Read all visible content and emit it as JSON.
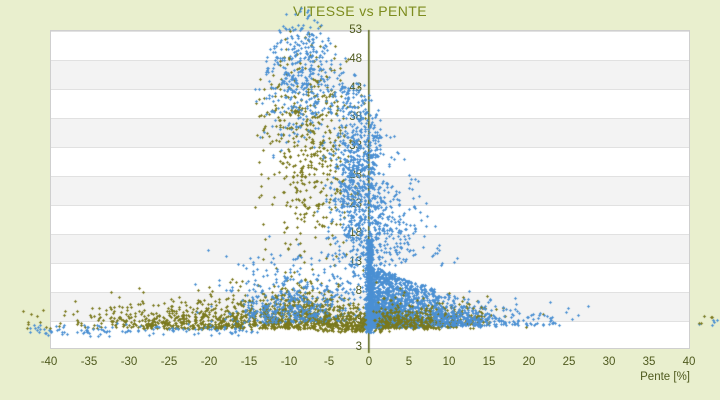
{
  "chart_data": {
    "type": "scatter",
    "title": "VITESSE vs PENTE",
    "xlabel": "Pente [%]",
    "ylabel": "",
    "xlim": [
      -40,
      40
    ],
    "ylim": [
      -2,
      53
    ],
    "xticks": [
      "-40",
      "-35",
      "-30",
      "-25",
      "-20",
      "-15",
      "-10",
      "-5",
      "0",
      "5",
      "10",
      "15",
      "20",
      "25",
      "30",
      "35",
      "40"
    ],
    "xtick_values": [
      -40,
      -35,
      -30,
      -25,
      -20,
      -15,
      -10,
      -5,
      0,
      5,
      10,
      15,
      20,
      25,
      30,
      35,
      40
    ],
    "ytick_labels_top_to_bottom": [
      "53",
      "48",
      "43",
      "38",
      "33",
      "28",
      "23",
      "18",
      "13",
      "8",
      "3"
    ],
    "ytick_values_top_to_bottom": [
      53,
      48,
      43,
      38,
      33,
      28,
      23,
      18,
      13,
      8,
      3
    ],
    "y_axis_min_label": "3",
    "grid": "horizontal-bands-alternating",
    "legend": "none",
    "y_axis_position": "at-x-zero",
    "colors": {
      "background": "#e9efce",
      "title_text": "#7d8c1e",
      "tick_text": "#4f5a1e",
      "axis_line": "#5c671d",
      "band_fill": "#f3f3f3",
      "gridline": "#e1e1e1",
      "plot_border": "#cfcfcf"
    },
    "series": [
      {
        "name": "serie-olive",
        "color": "#7a781c",
        "marker": "diamond-plus-3px"
      },
      {
        "name": "serie-bleue",
        "color": "#4a8fd3",
        "marker": "plus-3px"
      }
    ],
    "generator": {
      "seed": 20240042,
      "alpha": 0.92,
      "envelope": {
        "s0": -9,
        "vtop": 58,
        "al": 1.55,
        "pl": 1.35,
        "ar": 0.9,
        "pr": 1.3,
        "vmincap": 2
      },
      "clusters": [
        {
          "series": 0,
          "n": 620,
          "s": {
            "t": "n",
            "mu": -21,
            "sd": 7.5,
            "min": -43,
            "max": -8
          },
          "v": {
            "t": "h",
            "base": 1.5,
            "sd": 2.3,
            "min": 0.6,
            "max": 11
          }
        },
        {
          "series": 1,
          "n": 120,
          "s": {
            "t": "u",
            "a": -43,
            "b": -14
          },
          "v": {
            "t": "n",
            "mu": 1.3,
            "sd": 0.55,
            "min": 0.2,
            "max": 3
          }
        },
        {
          "series": 0,
          "n": 600,
          "env": true,
          "s": {
            "t": "n",
            "mu": -9,
            "sd": 4,
            "min": -20,
            "max": -0.5
          },
          "v": {
            "t": "h",
            "base": 1.5,
            "sd": 3.5,
            "min": 0.6,
            "max": 20
          }
        },
        {
          "series": 1,
          "n": 480,
          "env": true,
          "s": {
            "t": "n",
            "mu": -9.5,
            "sd": 4.5,
            "min": -22,
            "max": -0.5
          },
          "v": {
            "t": "h",
            "base": 2.5,
            "sd": 5,
            "min": 0.8,
            "max": 30
          }
        },
        {
          "series": 0,
          "n": 500,
          "env": true,
          "s": {
            "t": "n",
            "mu": -7.5,
            "sd": 3,
            "min": -14.5,
            "max": -0.5
          },
          "v": {
            "t": "n",
            "mu": 33,
            "sd": 10,
            "min": 13,
            "max": 57
          }
        },
        {
          "series": 1,
          "n": 420,
          "env": true,
          "s": {
            "t": "n",
            "mu": -8.5,
            "sd": 2.6,
            "min": -15,
            "max": -2
          },
          "v": {
            "t": "n",
            "mu": 46,
            "sd": 7,
            "min": 30,
            "max": 58
          }
        },
        {
          "series": 1,
          "n": 850,
          "env": true,
          "s": {
            "t": "n",
            "mu": -1.2,
            "sd": 2.0,
            "min": -6,
            "max": 1.5
          },
          "v": {
            "t": "n",
            "mu": 27,
            "sd": 9,
            "min": 5,
            "max": 52
          }
        },
        {
          "series": 0,
          "n": 280,
          "s": {
            "t": "n",
            "mu": -1.5,
            "sd": 2.5,
            "min": -7,
            "max": 2.5
          },
          "v": {
            "t": "h",
            "base": 1.0,
            "sd": 1.8,
            "min": 0.4,
            "max": 8
          }
        },
        {
          "series": 1,
          "n": 520,
          "s": {
            "t": "n",
            "mu": 0,
            "sd": 0.22,
            "min": -0.5,
            "max": 0.55
          },
          "v": {
            "t": "u",
            "a": 0.8,
            "b": 17
          }
        },
        {
          "series": 1,
          "n": 1500,
          "s": {
            "t": "h",
            "base": 0.2,
            "sd": 4.6,
            "min": 0,
            "max": 17
          },
          "v": {
            "t": "w",
            "vmin": 1.8,
            "vmax0": 12.5,
            "k": 0.5,
            "vfloor": 5.5,
            "pow": 1.45
          }
        },
        {
          "series": 0,
          "n": 300,
          "s": {
            "t": "h",
            "base": 1.5,
            "sd": 6,
            "min": 0.5,
            "max": 22
          },
          "v": {
            "t": "h",
            "base": 1.5,
            "sd": 2,
            "min": 0.5,
            "max": 9
          }
        },
        {
          "series": 0,
          "n": 130,
          "s": {
            "t": "u",
            "a": 0.5,
            "b": 15
          },
          "v": {
            "t": "h",
            "base": 2,
            "sd": 2.5,
            "min": 0.8,
            "max": 11
          }
        },
        {
          "series": 1,
          "n": 200,
          "env": true,
          "s": {
            "t": "h",
            "base": 1,
            "sd": 3.4,
            "min": 0.5,
            "max": 13
          },
          "v": {
            "t": "n",
            "mu": 19,
            "sd": 7,
            "min": 12,
            "max": 40
          }
        },
        {
          "series": 1,
          "n": 330,
          "s": {
            "t": "h",
            "base": 8,
            "sd": 7,
            "min": 2,
            "max": 39
          },
          "v": {
            "t": "h",
            "base": 2,
            "sd": 1.8,
            "min": 0.8,
            "max": 8
          }
        },
        {
          "series": 0,
          "n": 8,
          "s": {
            "t": "u",
            "a": -43.5,
            "b": -40.5
          },
          "v": {
            "t": "u",
            "a": 1.5,
            "b": 5
          }
        },
        {
          "series": 1,
          "n": 6,
          "s": {
            "t": "u",
            "a": 41,
            "b": 43.5
          },
          "v": {
            "t": "u",
            "a": 1.5,
            "b": 4
          }
        },
        {
          "series": 0,
          "n": 5,
          "s": {
            "t": "u",
            "a": 40.5,
            "b": 43
          },
          "v": {
            "t": "u",
            "a": 1.5,
            "b": 4
          }
        }
      ]
    }
  }
}
